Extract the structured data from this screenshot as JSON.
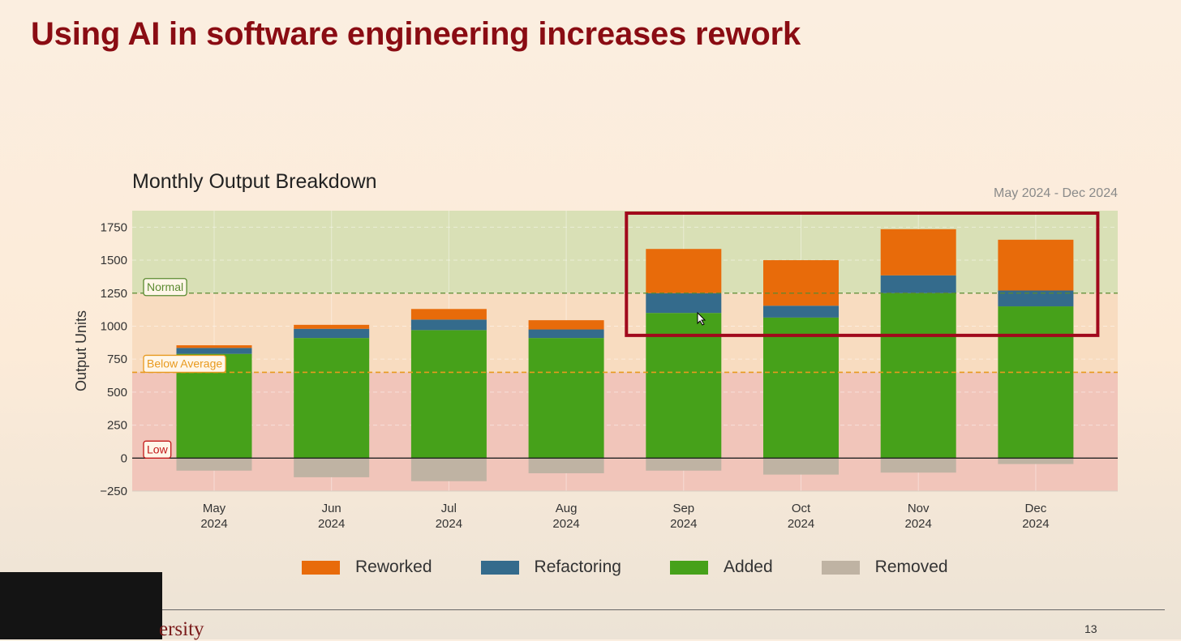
{
  "slide": {
    "title": "Using AI in software engineering increases rework",
    "footer_text": "ersity",
    "page_number": "13"
  },
  "chart_data": {
    "type": "bar",
    "stacked": true,
    "title": "Monthly Output Breakdown",
    "date_range": "May 2024 - Dec 2024",
    "ylabel": "Output Units",
    "xlabel": "",
    "ylim": [
      -250,
      1875
    ],
    "yticks": [
      -250,
      0,
      250,
      500,
      750,
      1000,
      1250,
      1500,
      1750
    ],
    "ytick_labels": [
      "−250",
      "0",
      "250",
      "500",
      "750",
      "1000",
      "1250",
      "1500",
      "1750"
    ],
    "categories": [
      {
        "month": "May",
        "year": "2024"
      },
      {
        "month": "Jun",
        "year": "2024"
      },
      {
        "month": "Jul",
        "year": "2024"
      },
      {
        "month": "Aug",
        "year": "2024"
      },
      {
        "month": "Sep",
        "year": "2024"
      },
      {
        "month": "Oct",
        "year": "2024"
      },
      {
        "month": "Nov",
        "year": "2024"
      },
      {
        "month": "Dec",
        "year": "2024"
      }
    ],
    "series": [
      {
        "name": "Added",
        "color": "#46a11a",
        "values": [
          790,
          910,
          970,
          910,
          1100,
          1065,
          1250,
          1150
        ]
      },
      {
        "name": "Refactoring",
        "color": "#346b8c",
        "values": [
          45,
          70,
          80,
          65,
          150,
          90,
          135,
          120
        ]
      },
      {
        "name": "Reworked",
        "color": "#e86b0a",
        "values": [
          20,
          30,
          80,
          70,
          335,
          345,
          350,
          385
        ]
      },
      {
        "name": "Removed",
        "color": "#bfb3a3",
        "values": [
          -95,
          -145,
          -175,
          -115,
          -95,
          -125,
          -110,
          -45
        ]
      }
    ],
    "legend": [
      "Reworked",
      "Refactoring",
      "Added",
      "Removed"
    ],
    "legend_position": "bottom",
    "thresholds": [
      {
        "label": "Normal",
        "value": 1250,
        "color": "#5a8a30",
        "band_color": "#d9e0b6"
      },
      {
        "label": "Below Average",
        "value": 650,
        "color": "#e89a1e",
        "band_color": "#f8dcc0"
      },
      {
        "label": "Low",
        "value": 0,
        "color": "#c21818",
        "band_color": "#f1c5ba"
      }
    ],
    "highlight": {
      "from_category": "Sep",
      "to_category": "Dec",
      "value_range": [
        930,
        1875
      ],
      "color": "#a1091c"
    },
    "grid": true
  }
}
